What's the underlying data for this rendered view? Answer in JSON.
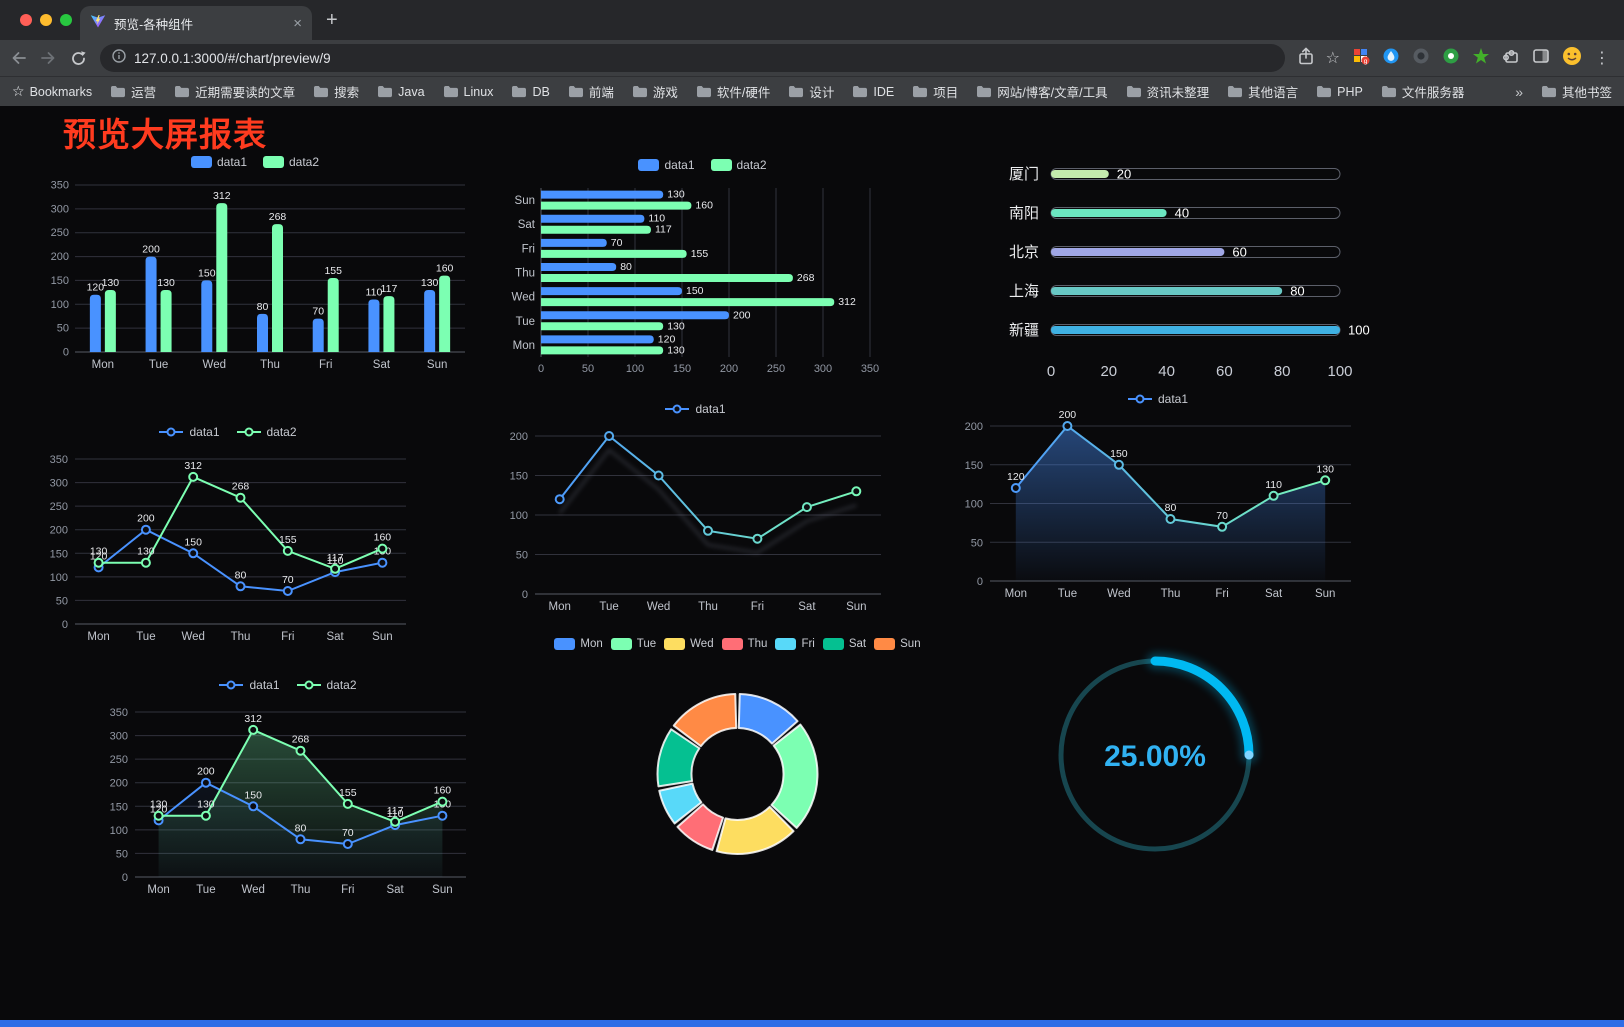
{
  "browser": {
    "tab_title": "预览-各种组件",
    "url": "127.0.0.1:3000/#/chart/preview/9",
    "bookmarks_label": "Bookmarks",
    "bookmarks": [
      "运营",
      "近期需要读的文章",
      "搜索",
      "Java",
      "Linux",
      "DB",
      "前端",
      "游戏",
      "软件/硬件",
      "设计",
      "IDE",
      "项目",
      "网站/博客/文章/工具",
      "资讯未整理",
      "其他语言",
      "PHP",
      "文件服务器"
    ],
    "overflow_symbol": "»",
    "other_bookmarks": "其他书签"
  },
  "page": {
    "title": "预览大屏报表",
    "title_color": "#ff3b1f",
    "accent_color": "#2e6de6"
  },
  "chart_data": [
    {
      "type": "bar",
      "orientation": "vertical",
      "categories": [
        "Mon",
        "Tue",
        "Wed",
        "Thu",
        "Fri",
        "Sat",
        "Sun"
      ],
      "series": [
        {
          "name": "data1",
          "color": "#4992ff",
          "values": [
            120,
            200,
            150,
            80,
            70,
            110,
            130
          ]
        },
        {
          "name": "data2",
          "color": "#7cffb2",
          "values": [
            130,
            130,
            312,
            268,
            155,
            117,
            160
          ]
        }
      ],
      "ylim": [
        0,
        350
      ],
      "ytick_step": 50,
      "value_labels": true,
      "legend": true
    },
    {
      "type": "bar",
      "orientation": "horizontal",
      "categories": [
        "Mon",
        "Tue",
        "Wed",
        "Thu",
        "Fri",
        "Sat",
        "Sun"
      ],
      "series": [
        {
          "name": "data1",
          "color": "#4992ff",
          "values": [
            120,
            200,
            150,
            80,
            70,
            110,
            130
          ]
        },
        {
          "name": "data2",
          "color": "#7cffb2",
          "values": [
            130,
            130,
            312,
            268,
            155,
            117,
            160
          ]
        }
      ],
      "xlim": [
        0,
        350
      ],
      "xtick_step": 50,
      "value_labels": true,
      "legend": true
    },
    {
      "type": "progress-bars",
      "items": [
        {
          "label": "厦门",
          "value": 20,
          "color": "#c4ebad"
        },
        {
          "label": "南阳",
          "value": 40,
          "color": "#6be6c1"
        },
        {
          "label": "北京",
          "value": 60,
          "color": "#a0a7e6"
        },
        {
          "label": "上海",
          "value": 80,
          "color": "#68c8c5"
        },
        {
          "label": "新疆",
          "value": 100,
          "color": "#3fb1e3"
        }
      ],
      "xlim": [
        0,
        100
      ],
      "xticks": [
        0,
        20,
        40,
        60,
        80,
        100
      ]
    },
    {
      "type": "line",
      "categories": [
        "Mon",
        "Tue",
        "Wed",
        "Thu",
        "Fri",
        "Sat",
        "Sun"
      ],
      "series": [
        {
          "name": "data1",
          "color": "#4992ff",
          "values": [
            120,
            200,
            150,
            80,
            70,
            110,
            130
          ],
          "labels": true
        },
        {
          "name": "data2",
          "color": "#7cffb2",
          "values": [
            130,
            130,
            312,
            268,
            155,
            117,
            160
          ],
          "labels": true
        }
      ],
      "ylim": [
        0,
        350
      ],
      "ytick_step": 50,
      "legend": true
    },
    {
      "type": "line",
      "categories": [
        "Mon",
        "Tue",
        "Wed",
        "Thu",
        "Fri",
        "Sat",
        "Sun"
      ],
      "series": [
        {
          "name": "data1",
          "color": "#4992ff",
          "gradient": [
            "#4992ff",
            "#7cffb2"
          ],
          "values": [
            120,
            200,
            150,
            80,
            70,
            110,
            130
          ],
          "labels": false,
          "shadow": true
        }
      ],
      "ylim": [
        0,
        200
      ],
      "ytick_step": 50,
      "legend": true
    },
    {
      "type": "line",
      "categories": [
        "Mon",
        "Tue",
        "Wed",
        "Thu",
        "Fri",
        "Sat",
        "Sun"
      ],
      "series": [
        {
          "name": "data1",
          "color": "#4992ff",
          "gradient": [
            "#4992ff",
            "#7cffb2"
          ],
          "area": 0.45,
          "values": [
            120,
            200,
            150,
            80,
            70,
            110,
            130
          ],
          "labels": true
        }
      ],
      "ylim": [
        0,
        200
      ],
      "ytick_step": 50,
      "legend": true
    },
    {
      "type": "line",
      "categories": [
        "Mon",
        "Tue",
        "Wed",
        "Thu",
        "Fri",
        "Sat",
        "Sun"
      ],
      "series": [
        {
          "name": "data1",
          "color": "#4992ff",
          "area": 0.1,
          "values": [
            120,
            200,
            150,
            80,
            70,
            110,
            130
          ],
          "labels": true
        },
        {
          "name": "data2",
          "color": "#7cffb2",
          "area": 0.3,
          "values": [
            130,
            130,
            312,
            268,
            155,
            117,
            160
          ],
          "labels": true
        }
      ],
      "ylim": [
        0,
        350
      ],
      "ytick_step": 50,
      "legend": true
    },
    {
      "type": "pie",
      "donut": true,
      "slices": [
        {
          "label": "Mon",
          "value": 120,
          "color": "#4992ff"
        },
        {
          "label": "Tue",
          "value": 200,
          "color": "#7cffb2"
        },
        {
          "label": "Wed",
          "value": 150,
          "color": "#fddd60"
        },
        {
          "label": "Thu",
          "value": 80,
          "color": "#ff6e76"
        },
        {
          "label": "Fri",
          "value": 70,
          "color": "#58d9f9"
        },
        {
          "label": "Sat",
          "value": 110,
          "color": "#05c091"
        },
        {
          "label": "Sun",
          "value": 130,
          "color": "#ff8a45"
        }
      ],
      "legend": true
    },
    {
      "type": "gauge",
      "percent": 25,
      "label": "25.00%",
      "color": "#00b9f2",
      "track_color": "#17464f",
      "text_color": "#31b2f2"
    }
  ]
}
